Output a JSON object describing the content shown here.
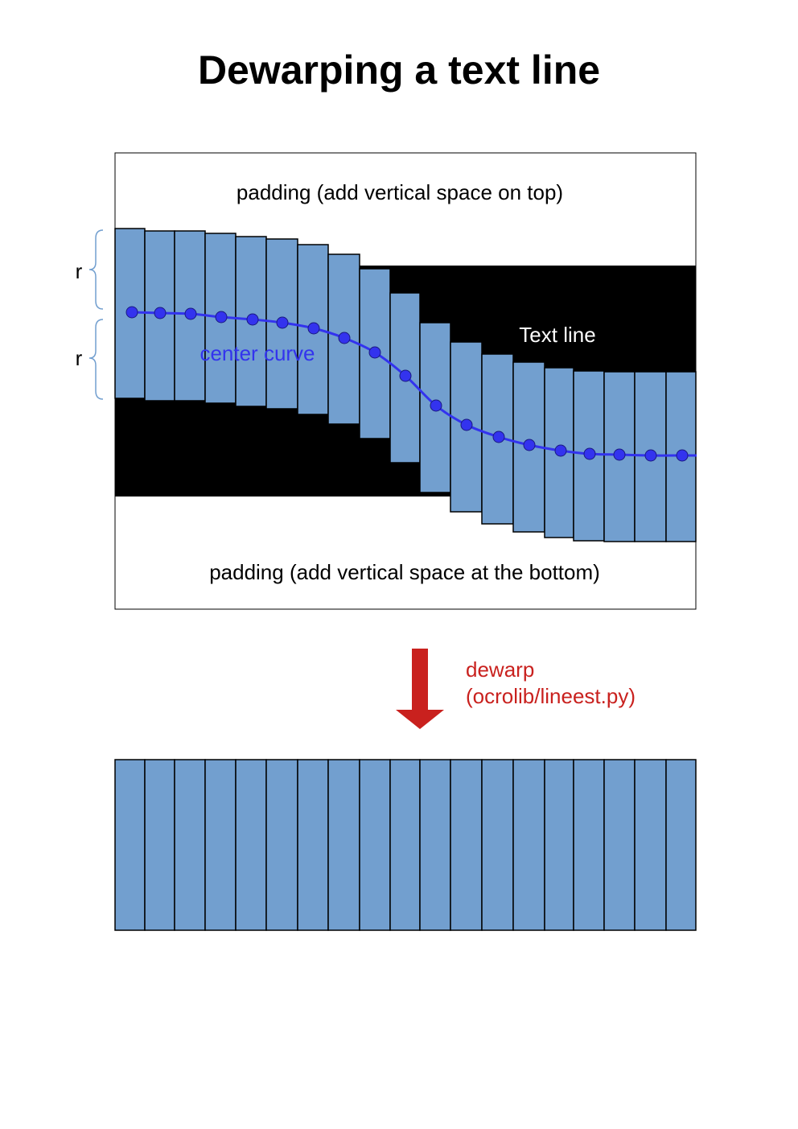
{
  "title": "Dewarping a text line",
  "labels": {
    "padding_top": "padding (add vertical space on top)",
    "padding_bottom": "padding (add vertical space at the bottom)",
    "text_line": "Text line",
    "center_curve": "center curve",
    "r_upper": "r",
    "r_lower": "r",
    "dewarp_line1": "dewarp",
    "dewarp_line2": "(ocrolib/lineest.py)"
  },
  "colors": {
    "column_fill": "#729fcf",
    "column_stroke": "#000000",
    "text_line_fill": "#000000",
    "curve": "#3333ee",
    "arrow": "#c9211e",
    "dewarp_text": "#c9211e",
    "bracket": "#729fcf"
  },
  "icons": {
    "arrow": "arrow-down-icon"
  }
}
